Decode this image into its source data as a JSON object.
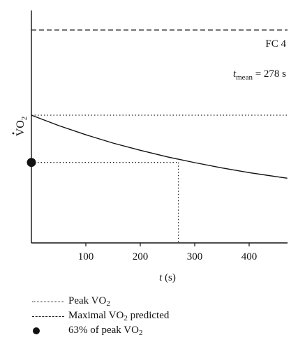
{
  "chart_data": {
    "type": "line",
    "x_label_var": "t",
    "x_label_unit": "(s)",
    "y_label_main": "VO",
    "y_label_sub": "2",
    "xlim": [
      0,
      470
    ],
    "x_ticks": [
      100,
      200,
      300,
      400
    ],
    "y_levels": {
      "maximal_predicted": 1.0,
      "peak": 0.6,
      "sixty_three_percent_peak": 0.378
    },
    "fc_label": "FC 4",
    "tmean_var": "t",
    "tmean_sub": "mean",
    "tmean_value": " = 278 s",
    "tmean": 278,
    "curve": {
      "x": [
        0,
        50,
        100,
        150,
        200,
        250,
        270,
        300,
        350,
        400,
        450,
        470
      ],
      "y": [
        0.6,
        0.551,
        0.508,
        0.469,
        0.435,
        0.404,
        0.393,
        0.377,
        0.352,
        0.33,
        0.311,
        0.304
      ]
    },
    "dashed_line_x_at_y": 270
  },
  "legend": [
    {
      "style": "dotted",
      "label": "Peak VO",
      "sub": "2",
      "suffix": ""
    },
    {
      "style": "dashed",
      "label": "Maximal VO",
      "sub": "2",
      "suffix": " predicted"
    },
    {
      "style": "dot",
      "label": "63% of peak VO",
      "sub": "2",
      "suffix": ""
    }
  ]
}
